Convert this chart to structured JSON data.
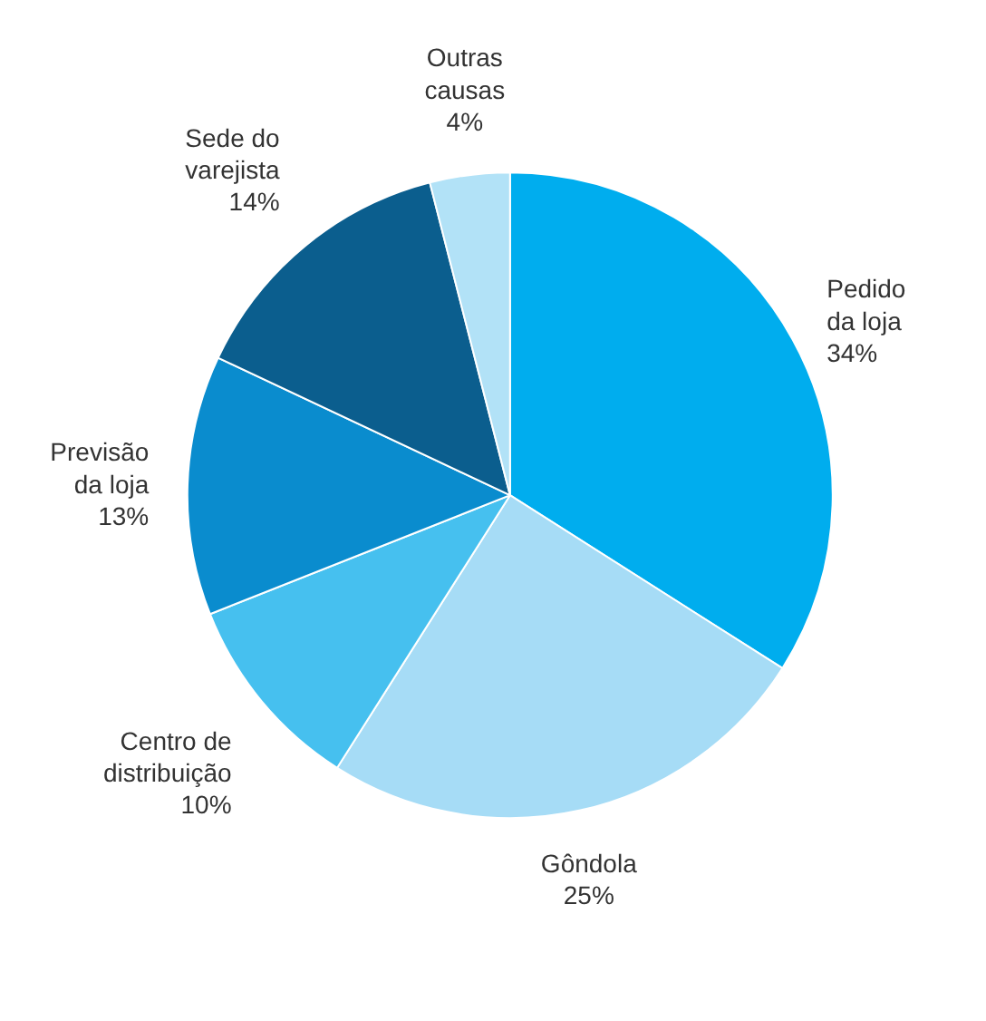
{
  "chart_data": {
    "type": "pie",
    "categories": [
      "Pedido da loja",
      "Gôndola",
      "Centro de distribuição",
      "Previsão da loja",
      "Sede do varejista",
      "Outras causas"
    ],
    "values": [
      34,
      25,
      10,
      13,
      14,
      4
    ],
    "colors": [
      "#00adee",
      "#a6dcf6",
      "#46c0ef",
      "#0a8cce",
      "#0b5e8e",
      "#b2e2f7"
    ],
    "value_labels": [
      "34%",
      "25%",
      "10%",
      "13%",
      "14%",
      "4%"
    ]
  }
}
